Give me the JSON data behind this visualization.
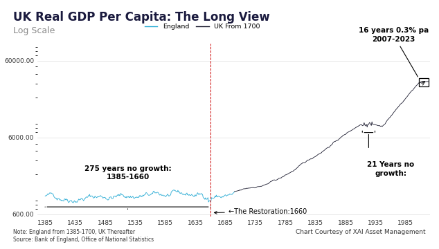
{
  "title": "UK Real GDP Per Capita: The Long View",
  "subtitle": "Log Scale",
  "legend_england": "England",
  "legend_uk": "UK From 1700",
  "england_color": "#29ABD4",
  "uk_color": "#1a1a2e",
  "restoration_color": "#CC0000",
  "background": "#FFFFFF",
  "plot_bg": "#FFFFFF",
  "title_color": "#1a1a3e",
  "subtitle_color": "#888888",
  "ytick_labels": [
    "600.00",
    "6000.00",
    "60000.00"
  ],
  "ytick_vals": [
    600,
    6000,
    60000
  ],
  "xticks": [
    1385,
    1435,
    1485,
    1535,
    1585,
    1635,
    1685,
    1735,
    1785,
    1835,
    1885,
    1935,
    1985
  ],
  "note": "Note: England from 1385-1700, UK Thereafter\nSource: Bank of England, Office of National Statistics",
  "credit": "Chart Courtesy of XAI Asset Management",
  "ann_275_text": "275 years no growth:\n1385-1660",
  "ann_21_text": "21 Years no\ngrowth:",
  "ann_16_text": "16 years 0.3% pa\n2007-2023",
  "ann_restoration": "←The Restoration:1660",
  "divider_color": "#8B1A1A",
  "grid_color": "#DDDDDD",
  "title_fontsize": 12,
  "subtitle_fontsize": 9,
  "axis_fontsize": 6.5,
  "ann_fontsize": 7.5,
  "note_fontsize": 5.5,
  "seed": 42
}
